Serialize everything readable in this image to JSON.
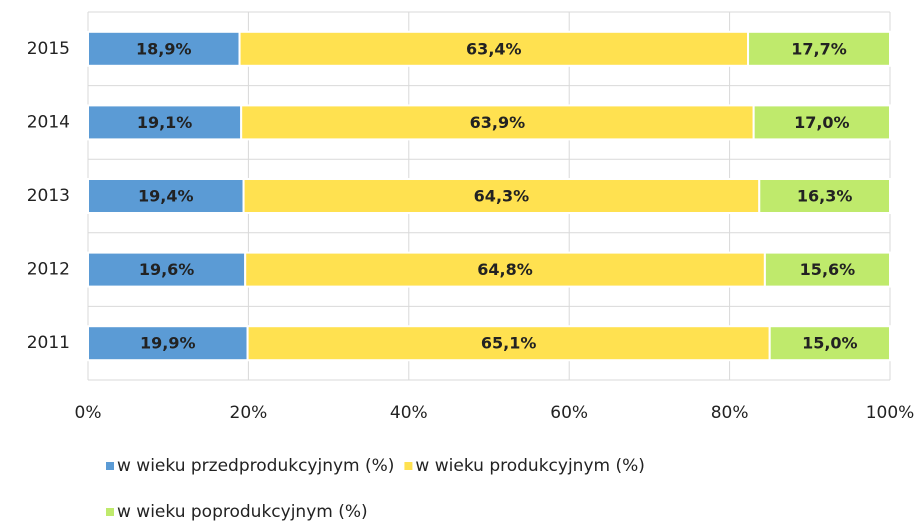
{
  "chart_data": {
    "type": "stacked_barh",
    "categories": [
      "2015",
      "2014",
      "2013",
      "2012",
      "2011"
    ],
    "series": [
      {
        "name": "w wieku przedprodukcyjnym (%)",
        "color": "#5b9bd5",
        "values": [
          18.9,
          19.1,
          19.4,
          19.6,
          19.9
        ],
        "value_labels": [
          "18,9%",
          "19,1%",
          "19,4%",
          "19,6%",
          "19,9%"
        ]
      },
      {
        "name": "w wieku produkcyjnym (%)",
        "color": "#ffe150",
        "values": [
          63.4,
          63.9,
          64.3,
          64.8,
          65.1
        ],
        "value_labels": [
          "63,4%",
          "63,9%",
          "64,3%",
          "64,8%",
          "65,1%"
        ]
      },
      {
        "name": "w wieku poprodukcyjnym (%)",
        "color": "#bfea6c",
        "values": [
          17.7,
          17.0,
          16.3,
          15.6,
          15.0
        ],
        "value_labels": [
          "17,7%",
          "17,0%",
          "16,3%",
          "15,6%",
          "15,0%"
        ]
      }
    ],
    "xlim": [
      0,
      100
    ],
    "xticks": [
      {
        "value": 0,
        "label": "0%"
      },
      {
        "value": 20,
        "label": "20%"
      },
      {
        "value": 40,
        "label": "40%"
      },
      {
        "value": 60,
        "label": "60%"
      },
      {
        "value": 80,
        "label": "80%"
      },
      {
        "value": 100,
        "label": "100%"
      }
    ],
    "grid": true
  }
}
